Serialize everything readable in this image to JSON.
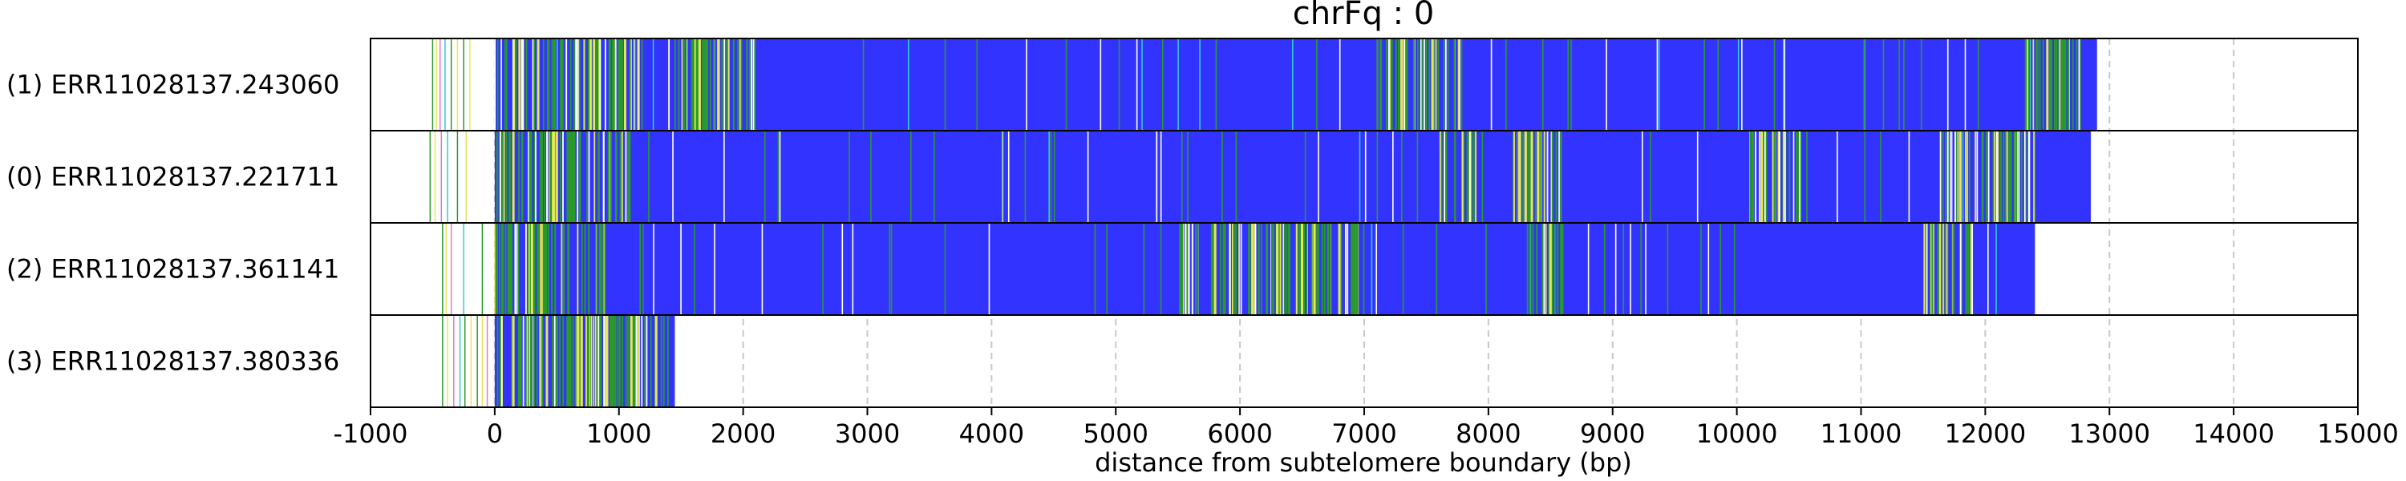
{
  "chart_data": {
    "type": "bar",
    "title": "chrFq : 0",
    "xlabel": "distance from subtelomere boundary (bp)",
    "ylabel": "",
    "xlim": [
      -1000,
      15000
    ],
    "xticks": [
      -1000,
      0,
      1000,
      2000,
      3000,
      4000,
      5000,
      6000,
      7000,
      8000,
      9000,
      10000,
      11000,
      12000,
      13000,
      14000,
      15000
    ],
    "xtick_labels": [
      "-1000",
      "0",
      "1000",
      "2000",
      "3000",
      "4000",
      "5000",
      "6000",
      "7000",
      "8000",
      "9000",
      "10000",
      "11000",
      "12000",
      "13000",
      "14000",
      "15000"
    ],
    "grid": "vertical dashed",
    "colors": {
      "base": "#3333ff",
      "green": "#2a9a2a",
      "yellow": "#e6e65a",
      "cyan": "#33cccc",
      "pink": "#e07ad8",
      "white": "#ffffff",
      "grid": "#c8c8c8"
    },
    "rows": [
      {
        "label": "(1) ERR11028137.243060",
        "start": 0,
        "end": 12900,
        "prefix_lines": [
          -500,
          -470,
          -440,
          -400,
          -350,
          -300,
          -250,
          -200
        ],
        "dense_green": [
          [
            0,
            1200
          ],
          [
            1400,
            2100
          ],
          [
            7100,
            7800
          ],
          [
            12300,
            12800
          ]
        ],
        "yellow_spots": [
          200,
          350,
          800,
          1050,
          1650,
          1800,
          7300,
          7550,
          12500
        ]
      },
      {
        "label": "(0) ERR11028137.221711",
        "start": 0,
        "end": 12850,
        "prefix_lines": [
          -520,
          -480,
          -430,
          -380,
          -300,
          -230
        ],
        "dense_green": [
          [
            0,
            1100
          ],
          [
            7600,
            7900
          ],
          [
            8200,
            8600
          ],
          [
            10100,
            10600
          ],
          [
            11600,
            12400
          ]
        ],
        "yellow_spots": [
          150,
          500,
          8250,
          8300,
          8350,
          8400,
          10200,
          11800
        ]
      },
      {
        "label": "(2) ERR11028137.361141",
        "start": 0,
        "end": 12400,
        "prefix_lines": [
          -420,
          -390,
          -350,
          -250,
          -100
        ],
        "dense_green": [
          [
            0,
            900
          ],
          [
            5500,
            7000
          ],
          [
            8300,
            8600
          ],
          [
            11500,
            11900
          ]
        ],
        "yellow_spots": [
          300,
          5800,
          6100,
          6300,
          6500,
          6600,
          6800,
          8500
        ]
      },
      {
        "label": "(3) ERR11028137.380336",
        "start": 0,
        "end": 1450,
        "prefix_lines": [
          -420,
          -380,
          -330,
          -280,
          -240,
          -190,
          -140,
          -100,
          -60
        ],
        "dense_green": [
          [
            0,
            1400
          ]
        ],
        "yellow_spots": [
          150,
          420,
          700,
          900,
          1100,
          1300
        ]
      }
    ]
  }
}
